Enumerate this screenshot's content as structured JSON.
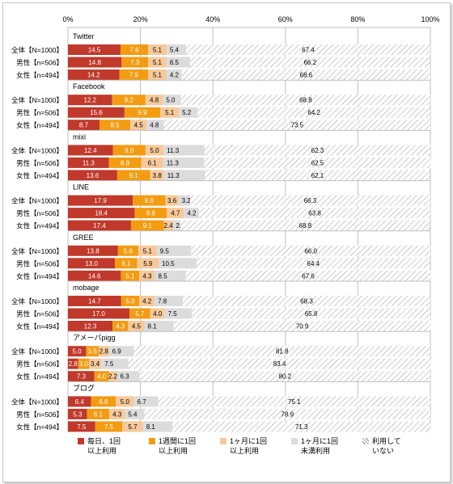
{
  "chart_data": {
    "type": "bar",
    "orientation": "horizontal-stacked-percent",
    "x_ticks": [
      "0%",
      "20%",
      "40%",
      "60%",
      "80%",
      "100%"
    ],
    "xlim": [
      0,
      100
    ],
    "legend_position": "bottom",
    "colors": [
      "#c0392b",
      "#f39c12",
      "#f7c99a",
      "#dcdcdc",
      "#ffffff"
    ],
    "series": [
      {
        "name": "毎日、1回\n以上利用",
        "color": "#c0392b"
      },
      {
        "name": "1週間に1回\n以上利用",
        "color": "#f39c12"
      },
      {
        "name": "1ヶ月に1回\n以上利用",
        "color": "#f7c99a"
      },
      {
        "name": "1ヶ月に1回\n未満利用",
        "color": "#dcdcdc"
      },
      {
        "name": "利用して\nいない",
        "color": "#ffffff",
        "pattern": "hatch"
      }
    ],
    "groups": [
      {
        "name": "Twitter",
        "rows": [
          {
            "label": "全体【N=1000】",
            "values": [
              14.5,
              7.6,
              5.1,
              5.4,
              67.4
            ]
          },
          {
            "label": "男性【n=506】",
            "values": [
              14.8,
              7.3,
              5.1,
              6.5,
              66.2
            ]
          },
          {
            "label": "女性【n=494】",
            "values": [
              14.2,
              7.9,
              5.1,
              4.2,
              68.6
            ]
          }
        ]
      },
      {
        "name": "Facebook",
        "rows": [
          {
            "label": "全体【N=1000】",
            "values": [
              12.2,
              9.2,
              4.8,
              5.0,
              68.8
            ]
          },
          {
            "label": "男性【n=506】",
            "values": [
              15.6,
              9.9,
              5.1,
              5.2,
              64.2
            ]
          },
          {
            "label": "女性【n=494】",
            "values": [
              8.7,
              8.5,
              4.5,
              4.8,
              73.5
            ]
          }
        ]
      },
      {
        "name": "mixi",
        "rows": [
          {
            "label": "全体【N=1000】",
            "values": [
              12.4,
              9.0,
              5.0,
              11.3,
              62.3
            ]
          },
          {
            "label": "男性【n=506】",
            "values": [
              11.3,
              8.9,
              6.1,
              11.3,
              62.5
            ]
          },
          {
            "label": "女性【n=494】",
            "values": [
              13.6,
              9.1,
              3.8,
              11.3,
              62.1
            ]
          }
        ]
      },
      {
        "name": "LINE",
        "rows": [
          {
            "label": "全体【N=1000】",
            "values": [
              17.9,
              9.0,
              3.6,
              3.2,
              66.3
            ]
          },
          {
            "label": "男性【n=506】",
            "values": [
              18.4,
              8.9,
              4.7,
              4.2,
              63.8
            ]
          },
          {
            "label": "女性【n=494】",
            "values": [
              17.4,
              9.1,
              2.4,
              2.2,
              68.8
            ]
          }
        ]
      },
      {
        "name": "GREE",
        "rows": [
          {
            "label": "全体【N=1000】",
            "values": [
              13.8,
              5.6,
              5.1,
              9.5,
              66.0
            ]
          },
          {
            "label": "男性【n=506】",
            "values": [
              13.0,
              6.1,
              5.9,
              10.5,
              64.4
            ]
          },
          {
            "label": "女性【n=494】",
            "values": [
              14.6,
              5.1,
              4.3,
              8.5,
              67.6
            ]
          }
        ]
      },
      {
        "name": "mobage",
        "rows": [
          {
            "label": "全体【N=1000】",
            "values": [
              14.7,
              5.0,
              4.2,
              7.8,
              68.3
            ]
          },
          {
            "label": "男性【n=506】",
            "values": [
              17.0,
              5.7,
              4.0,
              7.5,
              65.8
            ]
          },
          {
            "label": "女性【n=494】",
            "values": [
              12.3,
              4.3,
              4.5,
              8.1,
              70.9
            ]
          }
        ]
      },
      {
        "name": "アメーバpigg",
        "rows": [
          {
            "label": "全体【N=1000】",
            "values": [
              5.0,
              3.5,
              2.8,
              6.9,
              81.8
            ]
          },
          {
            "label": "男性【n=506】",
            "values": [
              2.8,
              3.0,
              3.4,
              7.5,
              83.4
            ]
          },
          {
            "label": "女性【n=494】",
            "values": [
              7.3,
              4.0,
              2.2,
              6.3,
              80.2
            ]
          }
        ]
      },
      {
        "name": "ブログ",
        "rows": [
          {
            "label": "全体【N=1000】",
            "values": [
              6.4,
              6.8,
              5.0,
              6.7,
              75.1
            ]
          },
          {
            "label": "男性【n=506】",
            "values": [
              5.3,
              6.1,
              4.3,
              5.4,
              78.9
            ]
          },
          {
            "label": "女性【n=494】",
            "values": [
              7.5,
              7.5,
              5.7,
              8.1,
              71.3
            ]
          }
        ]
      }
    ]
  }
}
